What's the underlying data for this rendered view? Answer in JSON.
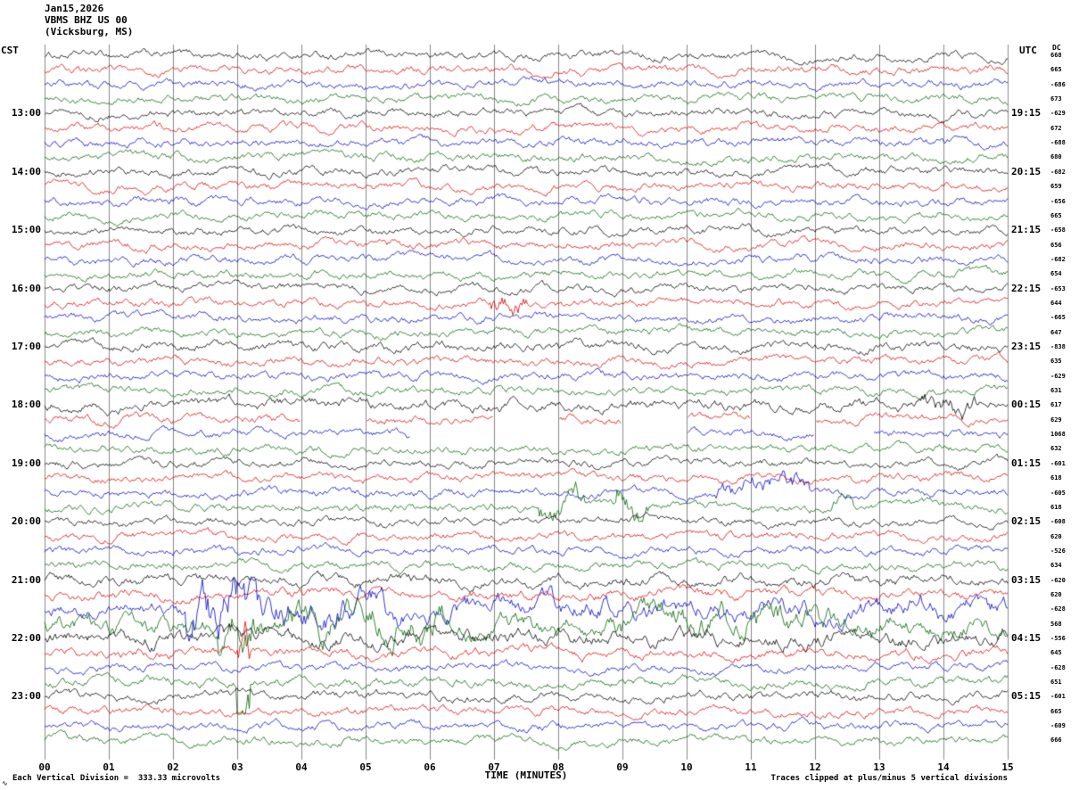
{
  "header": {
    "date": "Jan15,2026",
    "station": "VBMS BHZ US 00",
    "location": "(Vicksburg, MS)"
  },
  "axes": {
    "left_tz": "CST",
    "right_tz": "UTC",
    "dc_label": "DC",
    "x_title": "TIME (MINUTES)",
    "x_ticks": [
      "00",
      "01",
      "02",
      "03",
      "04",
      "05",
      "06",
      "07",
      "08",
      "09",
      "10",
      "11",
      "12",
      "13",
      "14",
      "15"
    ]
  },
  "footer": {
    "scale_note": "Each Vertical Division =  333.33 microvolts",
    "clip_note": "Traces clipped at plus/minus 5 vertical divisions",
    "corner_mark": "∿"
  },
  "chart_data": {
    "type": "line",
    "subtype": "helicorder-seismogram",
    "title": "VBMS BHZ US 00 (Vicksburg, MS) Jan15,2026",
    "xlabel": "TIME (MINUTES)",
    "x_range_minutes": [
      0,
      15
    ],
    "minutes_per_row": 15,
    "grid": true,
    "trace_colors": [
      "#000000",
      "#dd0000",
      "#0000cc",
      "#006600"
    ],
    "clip_divisions": 5,
    "microvolts_per_division": 333.33,
    "traces": [
      {
        "dc": "668"
      },
      {
        "dc": "665"
      },
      {
        "dc": "-686"
      },
      {
        "dc": "673"
      },
      {
        "dc": "-629",
        "left": "13:00",
        "right": "19:15"
      },
      {
        "dc": "672"
      },
      {
        "dc": "-688"
      },
      {
        "dc": "680"
      },
      {
        "dc": "-682",
        "left": "14:00",
        "right": "20:15"
      },
      {
        "dc": "659"
      },
      {
        "dc": "-656"
      },
      {
        "dc": "665"
      },
      {
        "dc": "-658",
        "left": "15:00",
        "right": "21:15"
      },
      {
        "dc": "656"
      },
      {
        "dc": "-682"
      },
      {
        "dc": "654"
      },
      {
        "dc": "-653",
        "left": "16:00",
        "right": "22:15"
      },
      {
        "dc": "644",
        "bursts": [
          {
            "s": 6.9,
            "e": 7.5,
            "a": 3.0
          }
        ]
      },
      {
        "dc": "-665"
      },
      {
        "dc": "647"
      },
      {
        "dc": "-838",
        "left": "17:00",
        "right": "23:15",
        "amp": 1.1
      },
      {
        "dc": "635"
      },
      {
        "dc": "-629"
      },
      {
        "dc": "631"
      },
      {
        "dc": "617",
        "left": "18:00",
        "right": "00:15",
        "amp": 1.3,
        "bursts": [
          {
            "s": 13.6,
            "e": 14.6,
            "a": 2.2
          }
        ]
      },
      {
        "dc": "629",
        "gaps": [
          [
            4.0,
            5.0
          ],
          [
            7.0,
            8.0
          ],
          [
            9.0,
            10.0
          ],
          [
            11.0,
            12.0
          ]
        ]
      },
      {
        "dc": "1068",
        "gaps": [
          [
            5.7,
            10.0
          ],
          [
            12.0,
            12.9
          ]
        ]
      },
      {
        "dc": "632"
      },
      {
        "dc": "-601",
        "left": "19:00",
        "right": "01:15"
      },
      {
        "dc": "618"
      },
      {
        "dc": "-605",
        "bursts": [
          {
            "s": 10.4,
            "e": 11.9,
            "a": 2.8
          }
        ]
      },
      {
        "dc": "618",
        "bursts": [
          {
            "s": 7.7,
            "e": 8.4,
            "a": 3.5
          },
          {
            "s": 8.9,
            "e": 9.4,
            "a": 4.0
          },
          {
            "s": 12.2,
            "e": 12.6,
            "a": 2.2
          }
        ]
      },
      {
        "dc": "-608",
        "left": "20:00",
        "right": "02:15"
      },
      {
        "dc": "620"
      },
      {
        "dc": "-526"
      },
      {
        "dc": "634"
      },
      {
        "dc": "-620",
        "left": "21:00",
        "right": "03:15",
        "amp": 1.3
      },
      {
        "dc": "620",
        "amp": 1.2
      },
      {
        "dc": "-628",
        "amp": 1.6,
        "bursts": [
          {
            "s": 2.2,
            "e": 3.3,
            "a": 4.5
          },
          {
            "s": 3.3,
            "e": 5.6,
            "a": 2.5
          },
          {
            "s": 5.6,
            "e": 15.0,
            "a": 1.6
          }
        ]
      },
      {
        "dc": "568",
        "amp": 2.2,
        "bursts": [
          {
            "s": 2.7,
            "e": 3.4,
            "a": 2.5
          },
          {
            "s": 3.8,
            "e": 6.2,
            "a": 1.8
          },
          {
            "s": 8.8,
            "e": 12.3,
            "a": 1.6
          }
        ]
      },
      {
        "dc": "-556",
        "left": "22:00",
        "right": "04:15",
        "amp": 1.8
      },
      {
        "dc": "645",
        "amp": 1.2,
        "bursts": [
          {
            "s": 3.0,
            "e": 3.2,
            "a": 6.0
          }
        ]
      },
      {
        "dc": "-628"
      },
      {
        "dc": "651",
        "amp": 1.1,
        "bursts": [
          {
            "s": 3.0,
            "e": 3.2,
            "a": 7.0
          }
        ]
      },
      {
        "dc": "-601",
        "left": "23:00",
        "right": "05:15",
        "amp": 1.1
      },
      {
        "dc": "665"
      },
      {
        "dc": "-609"
      },
      {
        "dc": "666"
      }
    ]
  }
}
